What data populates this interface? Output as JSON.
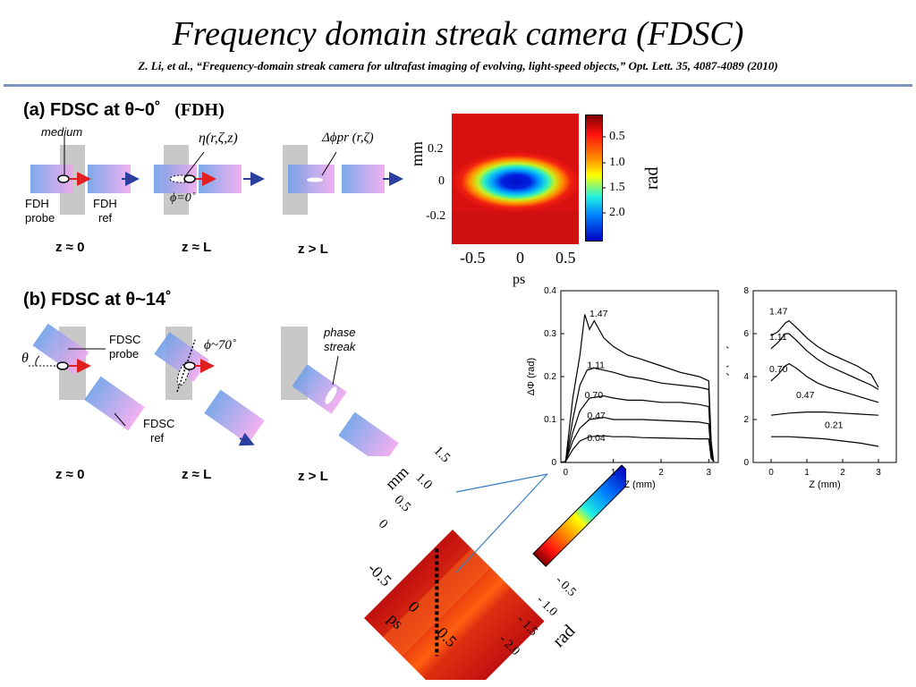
{
  "title": "Frequency domain streak camera (FDSC)",
  "citation": "Z. Li, et al., “Frequency-domain streak camera for ultrafast imaging of evolving, light-speed objects,” Opt. Lett. 35, 4087-4089 (2010)",
  "panel_a": {
    "header": "(a) FDSC at θ~0˚",
    "header_extra": "(FDH)",
    "medium_label": "medium",
    "probe_label_1": "FDH",
    "probe_label_2": "probe",
    "ref_label_1": "FDH",
    "ref_label_2": "ref",
    "eta_label": "η(r,ζ,z)",
    "phi_label": "ϕ=0˚",
    "dphi_label": "Δϕpr (r,ζ)",
    "z_labels": [
      "z ≈ 0",
      "z ≈ L",
      "z > L"
    ]
  },
  "panel_b": {
    "header": "(b) FDSC at θ~14˚",
    "theta_label": "θ",
    "probe_label_1": "FDSC",
    "probe_label_2": "probe",
    "ref_label_1": "FDSC",
    "ref_label_2": "ref",
    "phi_label": "ϕ~70˚",
    "streak_label_1": "phase",
    "streak_label_2": "streak",
    "z_labels": [
      "z ≈ 0",
      "z ≈ L",
      "z > L"
    ]
  },
  "heatmap_top": {
    "y_label": "mm",
    "x_label": "ps",
    "y_ticks": [
      "0.2",
      "0",
      "-0.2"
    ],
    "x_ticks": [
      "-0.5",
      "0",
      "0.5"
    ],
    "colorbar_ticks": [
      "- 0.5",
      "- 1.0",
      "- 1.5",
      "- 2.0"
    ],
    "colorbar_label": "rad"
  },
  "heatmap_bottom": {
    "y_label": "mm",
    "x_label": "ps",
    "y_ticks": [
      "1.5",
      "1.0",
      "0.5",
      "0"
    ],
    "x_ticks": [
      "-0.5",
      "0",
      "0.5"
    ],
    "colorbar_ticks": [
      "- 0.5",
      "- 1.0",
      "- 1.5",
      "- 2.0"
    ],
    "colorbar_label": "rad"
  },
  "chart_data": [
    {
      "type": "line",
      "xlabel": "Z (mm)",
      "ylabel": "ΔΦ (rad)",
      "xlim": [
        -0.1,
        3.2
      ],
      "ylim": [
        0,
        0.4
      ],
      "x_ticks": [
        "0",
        "1",
        "2",
        "3"
      ],
      "y_ticks": [
        "0",
        "0.1",
        "0.2",
        "0.3",
        "0.4"
      ],
      "series": [
        {
          "name": "1.47",
          "x": [
            -0.1,
            0.0,
            0.15,
            0.3,
            0.4,
            0.5,
            0.6,
            0.8,
            1.0,
            1.3,
            1.6,
            2.0,
            2.4,
            2.8,
            3.0,
            3.05,
            3.1
          ],
          "y": [
            0,
            0.002,
            0.15,
            0.25,
            0.345,
            0.31,
            0.33,
            0.29,
            0.27,
            0.25,
            0.24,
            0.225,
            0.21,
            0.2,
            0.19,
            0.05,
            0.002
          ]
        },
        {
          "name": "1.11",
          "x": [
            -0.1,
            0.0,
            0.15,
            0.3,
            0.45,
            0.6,
            0.8,
            1.0,
            1.3,
            1.6,
            2.0,
            2.4,
            2.8,
            3.0,
            3.05,
            3.1
          ],
          "y": [
            0,
            0.002,
            0.1,
            0.18,
            0.215,
            0.22,
            0.215,
            0.21,
            0.2,
            0.195,
            0.185,
            0.18,
            0.175,
            0.17,
            0.04,
            0.002
          ]
        },
        {
          "name": "0.70",
          "x": [
            -0.1,
            0.0,
            0.15,
            0.3,
            0.5,
            0.8,
            1.0,
            1.3,
            1.6,
            2.0,
            2.4,
            2.8,
            3.0,
            3.05,
            3.1
          ],
          "y": [
            0,
            0.002,
            0.07,
            0.12,
            0.15,
            0.155,
            0.15,
            0.145,
            0.145,
            0.14,
            0.14,
            0.135,
            0.13,
            0.03,
            0.002
          ]
        },
        {
          "name": "0.47",
          "x": [
            -0.1,
            0.0,
            0.15,
            0.3,
            0.5,
            0.8,
            1.0,
            1.3,
            1.6,
            2.0,
            2.4,
            2.8,
            3.0,
            3.05,
            3.1
          ],
          "y": [
            0,
            0.002,
            0.05,
            0.08,
            0.1,
            0.105,
            0.1,
            0.1,
            0.1,
            0.098,
            0.096,
            0.094,
            0.09,
            0.02,
            0.002
          ]
        },
        {
          "name": "0.04",
          "x": [
            -0.1,
            0.0,
            0.15,
            0.3,
            0.5,
            0.8,
            1.0,
            1.3,
            1.6,
            2.0,
            2.4,
            2.8,
            3.0,
            3.05,
            3.1
          ],
          "y": [
            0,
            0.002,
            0.03,
            0.05,
            0.06,
            0.062,
            0.06,
            0.06,
            0.058,
            0.057,
            0.056,
            0.055,
            0.055,
            0.01,
            0.002
          ]
        }
      ]
    },
    {
      "type": "line",
      "xlabel": "Z (mm)",
      "ylabel": "Intensity (a.u.)",
      "xlim": [
        -0.5,
        3.5
      ],
      "ylim": [
        0,
        8
      ],
      "x_ticks": [
        "0",
        "1",
        "2",
        "3"
      ],
      "y_ticks": [
        "0",
        "2",
        "4",
        "6",
        "8"
      ],
      "series": [
        {
          "name": "1.47",
          "x": [
            0,
            0.2,
            0.4,
            0.5,
            0.7,
            1.0,
            1.3,
            1.6,
            2.0,
            2.4,
            2.8,
            3.0
          ],
          "y": [
            5.9,
            6.1,
            6.5,
            6.6,
            6.3,
            5.8,
            5.4,
            5.1,
            4.8,
            4.5,
            4.1,
            3.5
          ]
        },
        {
          "name": "1.11",
          "x": [
            0,
            0.2,
            0.4,
            0.5,
            0.7,
            1.0,
            1.3,
            1.6,
            2.0,
            2.4,
            2.8,
            3.0
          ],
          "y": [
            5.3,
            5.6,
            6.0,
            6.0,
            5.7,
            5.2,
            4.8,
            4.5,
            4.2,
            3.9,
            3.6,
            3.4
          ]
        },
        {
          "name": "0.70",
          "x": [
            0,
            0.2,
            0.4,
            0.5,
            0.7,
            1.0,
            1.3,
            1.6,
            2.0,
            2.4,
            2.8,
            3.0
          ],
          "y": [
            3.8,
            4.1,
            4.5,
            4.6,
            4.4,
            4.0,
            3.7,
            3.5,
            3.3,
            3.1,
            2.9,
            2.8
          ]
        },
        {
          "name": "0.47",
          "x": [
            0,
            0.5,
            1.0,
            1.5,
            2.0,
            2.5,
            3.0
          ],
          "y": [
            2.2,
            2.3,
            2.35,
            2.35,
            2.3,
            2.25,
            2.2
          ]
        },
        {
          "name": "0.21",
          "x": [
            0,
            0.5,
            1.0,
            1.5,
            2.0,
            2.5,
            3.0
          ],
          "y": [
            1.2,
            1.2,
            1.15,
            1.1,
            1.0,
            0.9,
            0.75
          ]
        }
      ]
    }
  ]
}
